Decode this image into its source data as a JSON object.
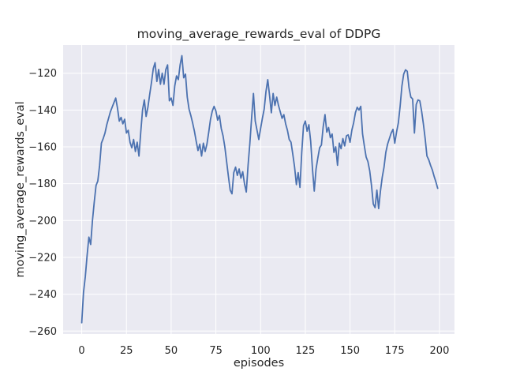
{
  "chart_data": {
    "type": "line",
    "title": "moving_average_rewards_eval of DDPG",
    "xlabel": "episodes",
    "ylabel": "moving_average_rewards_eval",
    "legend_position": "none",
    "grid": true,
    "background_color": "#EAEAF2",
    "grid_color": "#FFFFFF",
    "text_color": "#262626",
    "xlim": [
      -10.4,
      208.4
    ],
    "ylim": [
      -261.6,
      -104.7
    ],
    "xticks": [
      0,
      25,
      50,
      75,
      100,
      125,
      150,
      175,
      200
    ],
    "yticks": [
      -260,
      -240,
      -220,
      -200,
      -180,
      -160,
      -140,
      -120
    ],
    "x_start": 0,
    "x_step": 1,
    "series": [
      {
        "name": "moving_average_rewards_eval",
        "color": "#4C72B0",
        "values": [
          -255.5,
          -239,
          -230.5,
          -219,
          -209,
          -213,
          -200,
          -190,
          -181,
          -178.5,
          -170,
          -158,
          -155.5,
          -152.5,
          -148,
          -144.5,
          -141,
          -138.5,
          -136,
          -133.5,
          -139,
          -146,
          -144,
          -147.5,
          -145,
          -152.5,
          -151,
          -157.5,
          -160.5,
          -156,
          -162.5,
          -157.5,
          -165,
          -152,
          -140,
          -134.5,
          -143.5,
          -138.5,
          -131.5,
          -125,
          -117.5,
          -114.3,
          -124.5,
          -118,
          -126,
          -120,
          -126,
          -118,
          -115.5,
          -135,
          -133.5,
          -137.5,
          -127,
          -121.5,
          -123.5,
          -115.5,
          -110.5,
          -122.5,
          -120.5,
          -133,
          -139.5,
          -143,
          -147,
          -151.5,
          -157,
          -162,
          -158.5,
          -165,
          -158,
          -162.5,
          -158.5,
          -152,
          -145,
          -140.5,
          -138,
          -140.5,
          -145.5,
          -143,
          -150,
          -154,
          -160,
          -168,
          -176,
          -183.5,
          -185.5,
          -174,
          -171,
          -175.5,
          -172,
          -177,
          -173.5,
          -180,
          -184.5,
          -170,
          -158,
          -144,
          -131,
          -146,
          -151,
          -156,
          -150,
          -144.5,
          -139.5,
          -130,
          -123.5,
          -132,
          -141.5,
          -131,
          -137.5,
          -133,
          -137.5,
          -141,
          -144.5,
          -142.5,
          -147.5,
          -151,
          -156,
          -157.5,
          -164,
          -171,
          -180.5,
          -174,
          -182,
          -163,
          -148.5,
          -146,
          -151.5,
          -148,
          -157,
          -172,
          -184,
          -172,
          -166,
          -160.5,
          -159,
          -149,
          -142.5,
          -152,
          -149.5,
          -155,
          -153,
          -163,
          -160,
          -170,
          -158,
          -161,
          -155.5,
          -159.5,
          -154,
          -153.5,
          -157.5,
          -151,
          -147,
          -141.5,
          -138.5,
          -140,
          -138,
          -153,
          -159.5,
          -165.5,
          -168,
          -173,
          -181,
          -191,
          -193,
          -183.5,
          -193.5,
          -184,
          -176.5,
          -171,
          -163,
          -158.5,
          -155.5,
          -152.5,
          -150.5,
          -158,
          -152,
          -147,
          -138,
          -127,
          -120.5,
          -118.2,
          -119,
          -128,
          -133,
          -134,
          -152.5,
          -137,
          -134.5,
          -135,
          -140.5,
          -147.5,
          -155.5,
          -165,
          -167,
          -170,
          -172.5,
          -176,
          -179,
          -182.5
        ]
      }
    ]
  }
}
